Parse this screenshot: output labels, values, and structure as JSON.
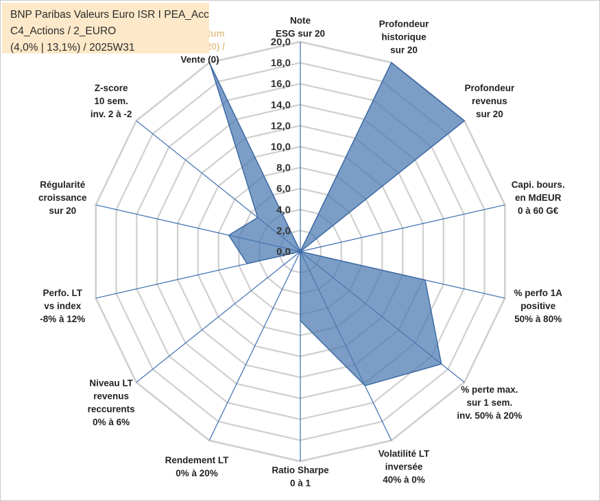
{
  "info": {
    "line1": "BNP Paribas Valeurs Euro ISR I PEA_Acc",
    "line2": "C4_Actions / 2_EURO",
    "line3": "(4,0% | 13,1%) / 2025W31"
  },
  "colors": {
    "fill": "#4a78b0",
    "stroke": "#3c6aa4",
    "grid": "#cfcfcf",
    "axis": "#3b6cb0",
    "info_bg": "#fde9c9",
    "momentum_text": "#e3c48e"
  },
  "chart_data": {
    "type": "radar",
    "rlim": [
      0,
      20
    ],
    "grid": true,
    "tick_labels": [
      "0,0",
      "2,0",
      "4,0",
      "6,0",
      "8,0",
      "10,0",
      "12,0",
      "14,0",
      "16,0",
      "18,0",
      "20,0"
    ],
    "categories": [
      "Note\nESG sur 20",
      "Profondeur\nhistorique\nsur 20",
      "Profondeur\nrevenus\nsur 20",
      "Capi. bours.\nen MdEUR\n0 à 60 G€",
      "% perfo 1A\npositive\n50% à 80%",
      "% perte max.\nsur 1 sem.\ninv. 50% à 20%",
      "Volatilité LT\ninversée\n40% à 0%",
      "Ratio Sharpe\n0 à 1",
      "Rendement LT\n0% à 20%",
      "Niveau LT\nrevenus\nreccurents\n0% à 6%",
      "Perfo. LT\nvs index\n-8% à 12%",
      "Régularité\ncroissance\nsur 20",
      "Z-score\n10 sem.\ninv. 2 à -2",
      "Momentum\nAchat (20) /\nVente (0)"
    ],
    "series": [
      {
        "values": [
          0,
          20,
          20,
          0,
          12.2,
          17.2,
          14.2,
          6.6,
          0,
          0,
          5.2,
          7,
          5.2,
          19.8
        ]
      }
    ]
  }
}
